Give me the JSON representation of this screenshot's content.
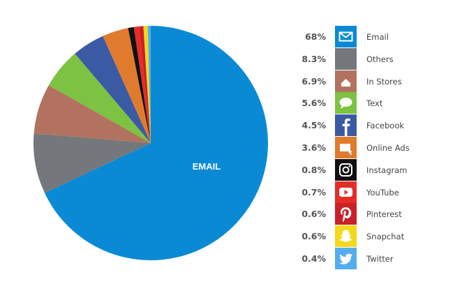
{
  "chart_data": {
    "type": "pie",
    "slice_label": "EMAIL",
    "slices": [
      {
        "name": "Email",
        "value": 68,
        "label": "68%",
        "color": "#0a8ad4",
        "icon": "envelope-icon"
      },
      {
        "name": "Others",
        "value": 8.3,
        "label": "8.3%",
        "color": "#74777b",
        "icon": "others-icon"
      },
      {
        "name": "In Stores",
        "value": 6.9,
        "label": "6.9%",
        "color": "#b2725f",
        "icon": "storefront-icon"
      },
      {
        "name": "Text",
        "value": 5.6,
        "label": "5.6%",
        "color": "#7dc242",
        "icon": "chat-bubble-icon"
      },
      {
        "name": "Facebook",
        "value": 4.5,
        "label": "4.5%",
        "color": "#3b5aa4",
        "icon": "facebook-icon"
      },
      {
        "name": "Online Ads",
        "value": 3.6,
        "label": "3.6%",
        "color": "#e07b2e",
        "icon": "online-ads-icon"
      },
      {
        "name": "Instagram",
        "value": 0.8,
        "label": "0.8%",
        "color": "#111111",
        "icon": "instagram-icon"
      },
      {
        "name": "YouTube",
        "value": 0.7,
        "label": "0.7%",
        "color": "#e52d27",
        "icon": "youtube-icon"
      },
      {
        "name": "Pinterest",
        "value": 0.6,
        "label": "0.6%",
        "color": "#cb2027",
        "icon": "pinterest-icon"
      },
      {
        "name": "Snapchat",
        "value": 0.6,
        "label": "0.6%",
        "color": "#f2d91b",
        "icon": "snapchat-icon"
      },
      {
        "name": "Twitter",
        "value": 0.4,
        "label": "0.4%",
        "color": "#55acee",
        "icon": "twitter-icon"
      }
    ]
  }
}
